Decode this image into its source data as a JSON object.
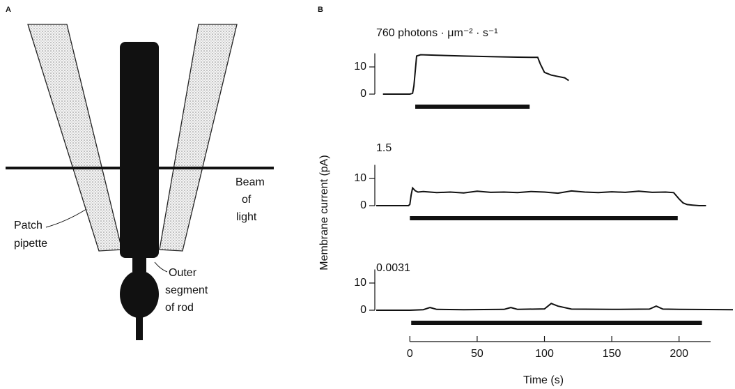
{
  "panels": [
    "A",
    "B"
  ],
  "diagram": {
    "beam_label": [
      "Beam",
      "of",
      "light"
    ],
    "pipette_label": [
      "Patch",
      "pipette"
    ],
    "rod_label": [
      "Outer",
      "segment",
      "of rod"
    ]
  },
  "chart_data": [
    {
      "type": "line",
      "title": "760 photons · μm⁻² · s⁻¹",
      "x": [
        -20,
        -10,
        0,
        2,
        3,
        5,
        8,
        20,
        40,
        60,
        80,
        90,
        95,
        97,
        100,
        105,
        110,
        115,
        118
      ],
      "values": [
        0,
        0,
        0,
        0.3,
        3,
        14,
        14.5,
        14.3,
        14,
        13.8,
        13.6,
        13.5,
        13.5,
        11,
        8,
        7,
        6.5,
        6,
        5
      ],
      "light": [
        4,
        89
      ],
      "xlim": [
        -25,
        240
      ],
      "ylim": [
        0,
        15
      ],
      "yticks": [
        0,
        10
      ]
    },
    {
      "type": "line",
      "title": "1.5",
      "ylabel": "Membrane current (pA)",
      "x": [
        -25,
        -10,
        -1,
        0,
        1,
        2,
        4,
        6,
        10,
        20,
        30,
        40,
        50,
        60,
        70,
        80,
        90,
        100,
        110,
        120,
        130,
        140,
        150,
        160,
        170,
        180,
        190,
        196,
        200,
        203,
        206,
        210,
        215,
        220
      ],
      "values": [
        0,
        0,
        0,
        0.5,
        4,
        6.5,
        5.5,
        5,
        5.2,
        4.8,
        5,
        4.7,
        5.3,
        4.9,
        5,
        4.8,
        5.2,
        5,
        4.6,
        5.4,
        5,
        4.8,
        5.1,
        4.9,
        5.3,
        4.9,
        5,
        4.8,
        2.5,
        1,
        0.4,
        0.2,
        0,
        0
      ],
      "light": [
        0,
        199
      ],
      "xlim": [
        -25,
        240
      ],
      "ylim": [
        0,
        15
      ],
      "yticks": [
        0,
        10
      ]
    },
    {
      "type": "line",
      "title": "0.0031",
      "xlabel": "Time (s)",
      "x": [
        -25,
        0,
        10,
        15,
        20,
        40,
        70,
        75,
        80,
        100,
        105,
        110,
        120,
        150,
        178,
        183,
        188,
        200,
        240
      ],
      "values": [
        0,
        0,
        0.2,
        1,
        0.3,
        0.2,
        0.3,
        1,
        0.3,
        0.5,
        2.5,
        1.5,
        0.4,
        0.3,
        0.4,
        1.5,
        0.4,
        0.3,
        0.2
      ],
      "light": [
        1,
        217
      ],
      "xlim": [
        -25,
        240
      ],
      "ylim": [
        0,
        15
      ],
      "yticks": [
        0,
        10
      ],
      "xticks": [
        0,
        50,
        100,
        150,
        200
      ]
    }
  ]
}
